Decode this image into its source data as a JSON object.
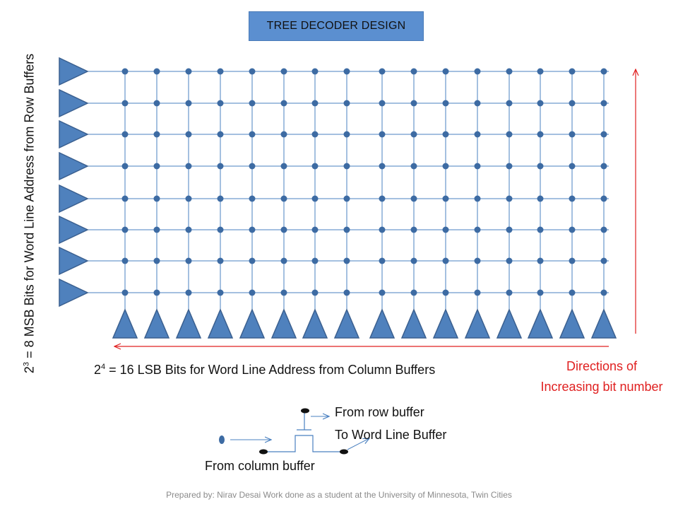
{
  "title": "TREE DECODER DESIGN",
  "row_label": {
    "base": "2",
    "exp": "3",
    "text": " = 8 MSB Bits for Word Line Address from Row Buffers"
  },
  "col_label": {
    "base": "2",
    "exp": "4",
    "text": " = 16 LSB Bits for Word Line Address from Column Buffers"
  },
  "direction_label": {
    "line1": "Directions of",
    "line2": "Increasing bit number"
  },
  "legend": {
    "from_row": "From row buffer",
    "to_word_line": "To Word Line Buffer",
    "from_column": "From column buffer"
  },
  "footer": "Prepared by: Nirav Desai Work done as a student at the University of Minnesota, Twin Cities",
  "grid": {
    "rows": 8,
    "columns": 16
  },
  "colors": {
    "buffer_fill": "#4f81bd",
    "buffer_stroke": "#3a5f8f",
    "node_fill": "#3d6ba3",
    "wire": "#4a80c0",
    "direction_arrow": "#e02020"
  }
}
